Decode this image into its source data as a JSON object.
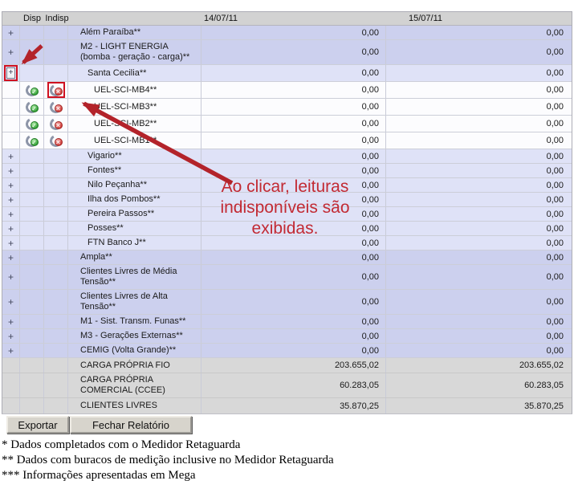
{
  "header": {
    "disp": "Disp",
    "indisp": "Indisp",
    "date1": "14/07/11",
    "date2": "15/07/11"
  },
  "expand_glyph": "+",
  "rows": [
    {
      "name": "Além Paraíba**",
      "level": 1,
      "expand": true,
      "v1": "0,00",
      "v2": "0,00"
    },
    {
      "name": "M2 - LIGHT ENERGIA (bomba - geração - carga)**",
      "level": 1,
      "expand": true,
      "v1": "0,00",
      "v2": "0,00"
    },
    {
      "name": "Santa Cecilia**",
      "level": 2,
      "expand": true,
      "expand_highlight": true,
      "v1": "0,00",
      "v2": "0,00"
    },
    {
      "name": "UEL-SCI-MB4**",
      "level": 3,
      "disp_icon": true,
      "indisp_icon": true,
      "indisp_highlight": true,
      "v1": "0,00",
      "v2": "0,00"
    },
    {
      "name": "UEL-SCI-MB3**",
      "level": 3,
      "disp_icon": true,
      "indisp_icon": true,
      "v1": "0,00",
      "v2": "0,00"
    },
    {
      "name": "UEL-SCI-MB2**",
      "level": 3,
      "disp_icon": true,
      "indisp_icon": true,
      "v1": "0,00",
      "v2": "0,00"
    },
    {
      "name": "UEL-SCI-MB1**",
      "level": 3,
      "disp_icon": true,
      "indisp_icon": true,
      "v1": "0,00",
      "v2": "0,00"
    },
    {
      "name": "Vigario**",
      "level": 2,
      "expand": true,
      "v1": "0,00",
      "v2": "0,00"
    },
    {
      "name": "Fontes**",
      "level": 2,
      "expand": true,
      "v1": "0,00",
      "v2": "0,00"
    },
    {
      "name": "Nilo Peçanha**",
      "level": 2,
      "expand": true,
      "v1": "0,00",
      "v2": "0,00"
    },
    {
      "name": "Ilha dos Pombos**",
      "level": 2,
      "expand": true,
      "v1": "0,00",
      "v2": "0,00"
    },
    {
      "name": "Pereira Passos**",
      "level": 2,
      "expand": true,
      "v1": "0,00",
      "v2": "0,00"
    },
    {
      "name": "Posses**",
      "level": 2,
      "expand": true,
      "v1": "0,00",
      "v2": "0,00"
    },
    {
      "name": "FTN Banco J**",
      "level": 2,
      "expand": true,
      "v1": "0,00",
      "v2": "0,00"
    },
    {
      "name": "Ampla**",
      "level": 1,
      "expand": true,
      "v1": "0,00",
      "v2": "0,00"
    },
    {
      "name": "Clientes Livres de Média Tensão**",
      "level": 1,
      "expand": true,
      "v1": "0,00",
      "v2": "0,00"
    },
    {
      "name": "Clientes Livres de Alta Tensão**",
      "level": 1,
      "expand": true,
      "v1": "0,00",
      "v2": "0,00"
    },
    {
      "name": "M1 - Sist. Transm. Funas**",
      "level": 1,
      "expand": true,
      "v1": "0,00",
      "v2": "0,00"
    },
    {
      "name": "M3 - Gerações Externas**",
      "level": 1,
      "expand": true,
      "v1": "0,00",
      "v2": "0,00"
    },
    {
      "name": "CEMIG (Volta Grande)**",
      "level": 1,
      "expand": true,
      "v1": "0,00",
      "v2": "0,00"
    },
    {
      "name": "CARGA PRÓPRIA FIO",
      "summary": true,
      "v1": "203.655,02",
      "v2": "203.655,02"
    },
    {
      "name": "CARGA PRÓPRIA COMERCIAL (CCEE)",
      "summary": true,
      "v1": "60.283,05",
      "v2": "60.283,05"
    },
    {
      "name": "CLIENTES LIVRES",
      "summary": true,
      "v1": "35.870,25",
      "v2": "35.870,25"
    }
  ],
  "icons": {
    "disp": "available-icon",
    "indisp": "unavailable-icon"
  },
  "buttons": {
    "export_label": "Exportar",
    "close_label": "Fechar Relatório"
  },
  "annotation": {
    "text": "Ao clicar, leituras indisponíveis são exibidas."
  },
  "footnotes": [
    "* Dados completados com o Medidor Retaguarda",
    "** Dados com buracos de medição inclusive no Medidor Retaguarda",
    "*** Informações apresentadas em Mega"
  ],
  "colors": {
    "level1_row": "#ccd0ee",
    "level2_row": "#dfe2f7",
    "level3_row": "#fcfcfe",
    "summary_row": "#d8d8d8",
    "header_bg": "#d2d2d2",
    "annotation_red": "#c22a33",
    "highlight_red": "#cf1020",
    "arrow_red": "#b3232a"
  }
}
